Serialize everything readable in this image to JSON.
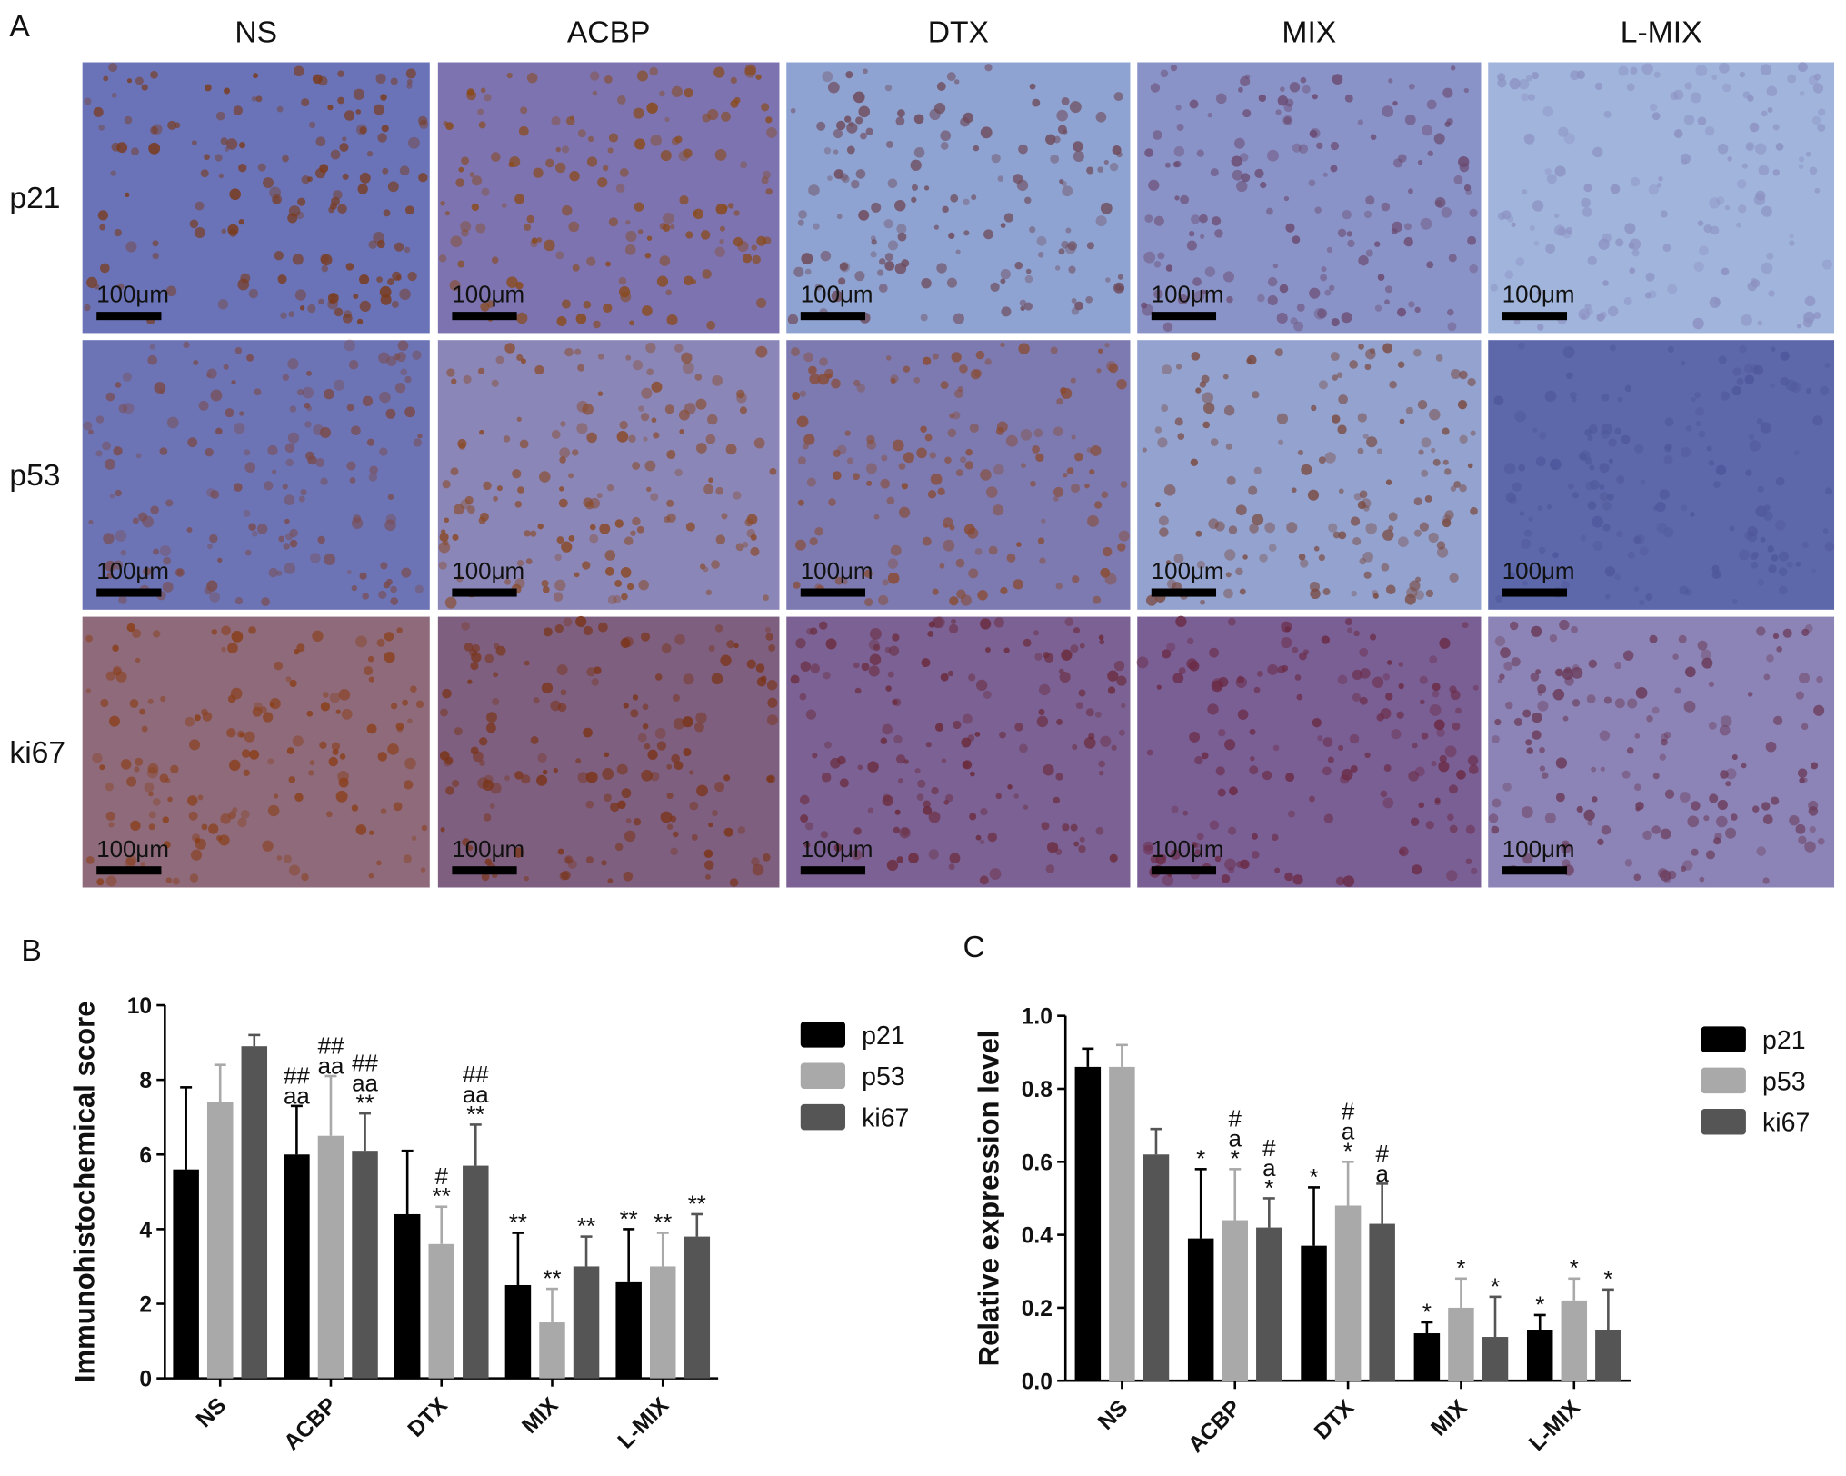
{
  "panel_a": {
    "label": "A",
    "columns": [
      "NS",
      "ACBP",
      "DTX",
      "MIX",
      "L-MIX"
    ],
    "rows": [
      "p21",
      "p53",
      "ki67"
    ],
    "scale_bar": "100μm"
  },
  "chart_data": [
    {
      "type": "bar",
      "panel_label": "B",
      "y_label": "Immunohistochemical score",
      "categories": [
        "NS",
        "ACBP",
        "DTX",
        "MIX",
        "L-MIX"
      ],
      "ylim": [
        0,
        10
      ],
      "yticks": [
        0,
        2,
        4,
        6,
        8,
        10
      ],
      "series": [
        {
          "name": "p21",
          "color": "#000000",
          "values": [
            5.6,
            6.0,
            4.4,
            2.5,
            2.6
          ],
          "errors": [
            2.2,
            1.3,
            1.7,
            1.4,
            1.4
          ],
          "annotations": [
            null,
            [
              "##",
              "aa"
            ],
            null,
            [
              "**"
            ],
            [
              "**"
            ]
          ]
        },
        {
          "name": "p53",
          "color": "#a9a9a9",
          "values": [
            7.4,
            6.5,
            3.6,
            1.5,
            3.0
          ],
          "errors": [
            1.0,
            1.6,
            1.0,
            0.9,
            0.9
          ],
          "annotations": [
            null,
            [
              "##",
              "aa"
            ],
            [
              "#",
              "**"
            ],
            [
              "**"
            ],
            [
              "**"
            ]
          ]
        },
        {
          "name": "ki67",
          "color": "#555555",
          "values": [
            8.9,
            6.1,
            5.7,
            3.0,
            3.8
          ],
          "errors": [
            0.3,
            1.0,
            1.1,
            0.8,
            0.6
          ],
          "annotations": [
            null,
            [
              "##",
              "aa",
              "**"
            ],
            [
              "##",
              "aa",
              "**"
            ],
            [
              "**"
            ],
            [
              "**"
            ]
          ]
        }
      ]
    },
    {
      "type": "bar",
      "panel_label": "C",
      "y_label": "Relative expression level",
      "categories": [
        "NS",
        "ACBP",
        "DTX",
        "MIX",
        "L-MIX"
      ],
      "ylim": [
        0,
        1.0
      ],
      "yticks": [
        {
          "value": 0,
          "label": "0.0"
        },
        0.2,
        0.4,
        0.6,
        0.8,
        {
          "value": 1,
          "label": "1.0"
        }
      ],
      "series": [
        {
          "name": "p21",
          "color": "#000000",
          "values": [
            0.86,
            0.39,
            0.37,
            0.13,
            0.14
          ],
          "errors": [
            0.05,
            0.19,
            0.16,
            0.03,
            0.04
          ],
          "annotations": [
            null,
            [
              "*"
            ],
            [
              "*"
            ],
            [
              "*"
            ],
            [
              "*"
            ]
          ]
        },
        {
          "name": "p53",
          "color": "#a9a9a9",
          "values": [
            0.86,
            0.44,
            0.48,
            0.2,
            0.22
          ],
          "errors": [
            0.06,
            0.14,
            0.12,
            0.08,
            0.06
          ],
          "annotations": [
            null,
            [
              "#",
              "a",
              "*"
            ],
            [
              "#",
              "a",
              "*"
            ],
            [
              "*"
            ],
            [
              "*"
            ]
          ]
        },
        {
          "name": "ki67",
          "color": "#555555",
          "values": [
            0.62,
            0.42,
            0.43,
            0.12,
            0.14
          ],
          "errors": [
            0.07,
            0.08,
            0.11,
            0.11,
            0.11
          ],
          "annotations": [
            null,
            [
              "#",
              "a",
              "*"
            ],
            [
              "#",
              "a"
            ],
            [
              "*"
            ],
            [
              "*"
            ]
          ]
        }
      ]
    }
  ]
}
